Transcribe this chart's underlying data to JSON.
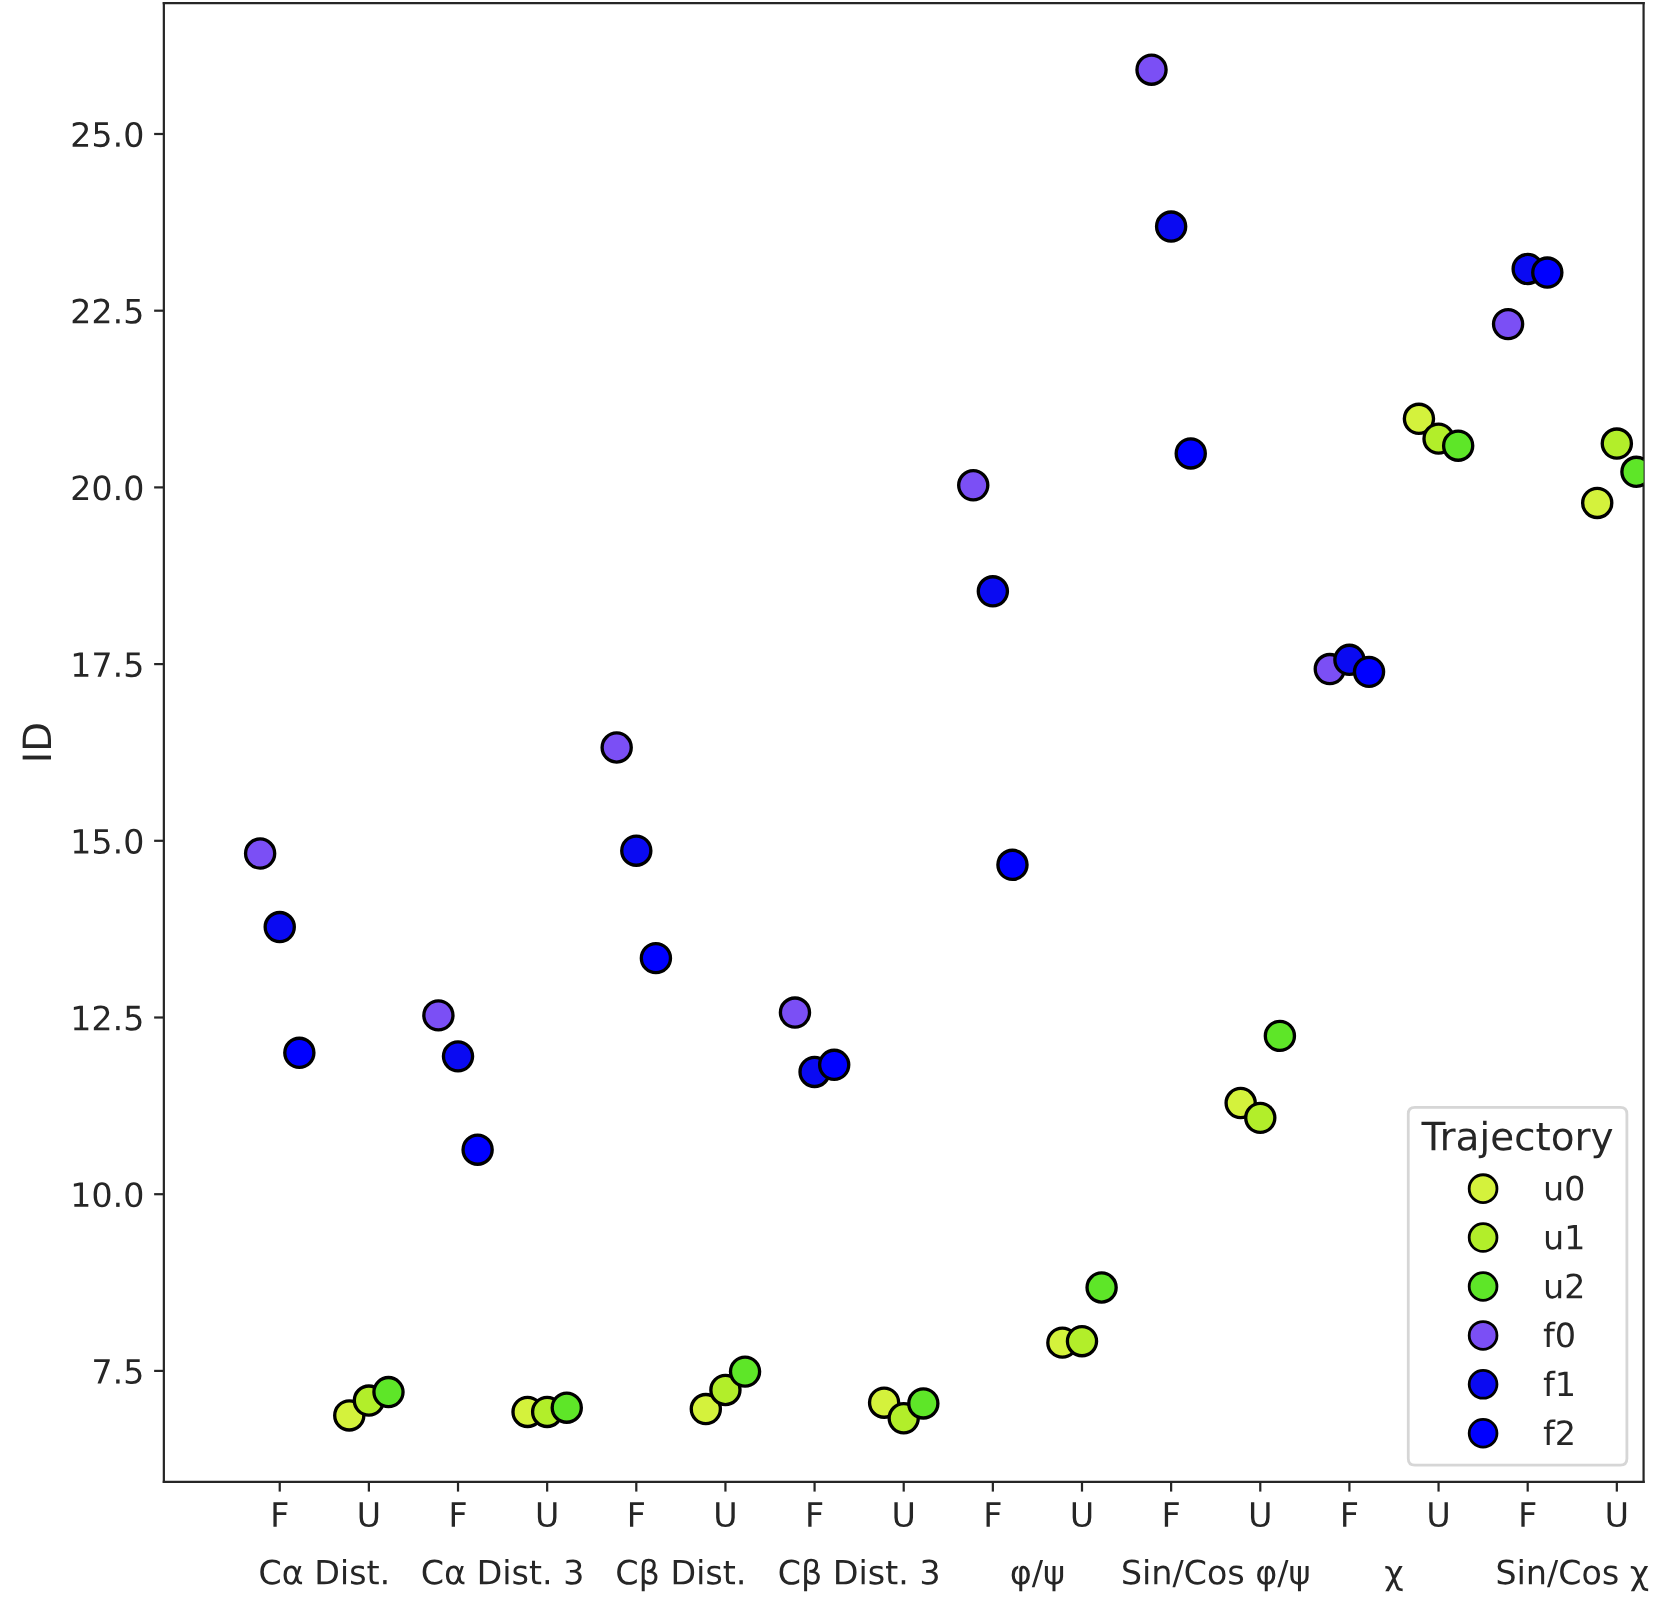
{
  "chart_data": {
    "type": "scatter",
    "ylabel": "ID",
    "categories": [
      "F",
      "U",
      "F",
      "U",
      "F",
      "U",
      "F",
      "U",
      "F",
      "U",
      "F",
      "U",
      "F",
      "U",
      "F",
      "U"
    ],
    "annotations": [
      "Cα Dist.",
      "Cα Dist. 3",
      "Cβ Dist.",
      "Cβ Dist. 3",
      "φ/ψ",
      "Sin/Cos φ/ψ",
      "χ",
      "Sin/Cos χ"
    ],
    "series": [
      {
        "name": "u0",
        "color": "#d4f23c",
        "values": [
          null,
          6.87,
          null,
          6.92,
          null,
          6.96,
          null,
          7.05,
          null,
          7.9,
          null,
          11.29,
          null,
          20.97,
          null,
          19.78
        ]
      },
      {
        "name": "u1",
        "color": "#b2ee2a",
        "values": [
          null,
          7.08,
          null,
          6.92,
          null,
          7.23,
          null,
          6.83,
          null,
          7.92,
          null,
          11.08,
          null,
          20.69,
          null,
          20.62
        ]
      },
      {
        "name": "u2",
        "color": "#5ee628",
        "values": [
          null,
          7.2,
          null,
          6.98,
          null,
          7.49,
          null,
          7.04,
          null,
          8.68,
          null,
          12.24,
          null,
          20.59,
          null,
          20.22
        ]
      },
      {
        "name": "f0",
        "color": "#7b4ff5",
        "values": [
          14.82,
          null,
          12.53,
          null,
          16.32,
          null,
          12.57,
          null,
          20.03,
          null,
          25.91,
          null,
          17.43,
          null,
          22.31,
          null
        ]
      },
      {
        "name": "f1",
        "color": "#0a0af2",
        "values": [
          13.78,
          null,
          11.95,
          null,
          14.86,
          null,
          11.73,
          null,
          18.53,
          null,
          23.69,
          null,
          17.56,
          null,
          23.09,
          null
        ]
      },
      {
        "name": "f2",
        "color": "#0000ff",
        "values": [
          12.0,
          null,
          10.63,
          null,
          13.34,
          null,
          11.83,
          null,
          14.66,
          null,
          20.48,
          null,
          17.39,
          null,
          23.04,
          null
        ]
      }
    ],
    "ylim": [
      5.93,
      26.85
    ],
    "yticks": [
      {
        "value": 7.5,
        "label": "7.5"
      },
      {
        "value": 10,
        "label": "10.0"
      },
      {
        "value": 12.5,
        "label": "12.5"
      },
      {
        "value": 15,
        "label": "15.0"
      },
      {
        "value": 17.5,
        "label": "17.5"
      },
      {
        "value": 20,
        "label": "20.0"
      },
      {
        "value": 22.5,
        "label": "22.5"
      },
      {
        "value": 25,
        "label": "25.0"
      }
    ],
    "legend_title": "Trajectory",
    "legend": "bottom right",
    "marker": "circle",
    "grid": false
  }
}
